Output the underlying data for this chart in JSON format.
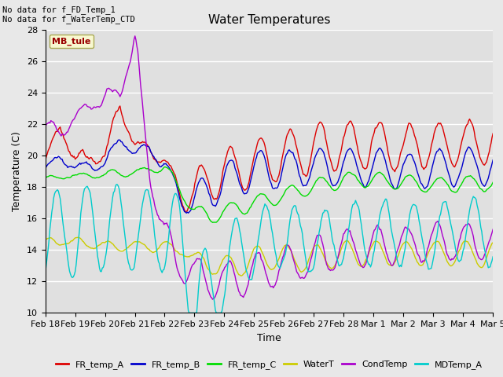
{
  "title": "Water Temperatures",
  "ylabel": "Temperature (C)",
  "xlabel": "Time",
  "annotations": [
    "No data for f_FD_Temp_1",
    "No data for f_WaterTemp_CTD"
  ],
  "legend_label": "MB_tule",
  "series_labels": [
    "FR_temp_A",
    "FR_temp_B",
    "FR_temp_C",
    "WaterT",
    "CondTemp",
    "MDTemp_A"
  ],
  "series_colors": [
    "#dd0000",
    "#0000cc",
    "#00dd00",
    "#cccc00",
    "#aa00cc",
    "#00cccc"
  ],
  "ylim": [
    10,
    28
  ],
  "yticks": [
    10,
    12,
    14,
    16,
    18,
    20,
    22,
    24,
    26,
    28
  ],
  "xtick_labels": [
    "Feb 18",
    "Feb 19",
    "Feb 20",
    "Feb 21",
    "Feb 22",
    "Feb 23",
    "Feb 24",
    "Feb 25",
    "Feb 26",
    "Feb 27",
    "Feb 28",
    "Mar 1",
    "Mar 2",
    "Mar 3",
    "Mar 4",
    "Mar 5"
  ],
  "bg_color": "#e8e8e8",
  "axes_bg_color": "#e0e0e0",
  "line_width": 1.0
}
